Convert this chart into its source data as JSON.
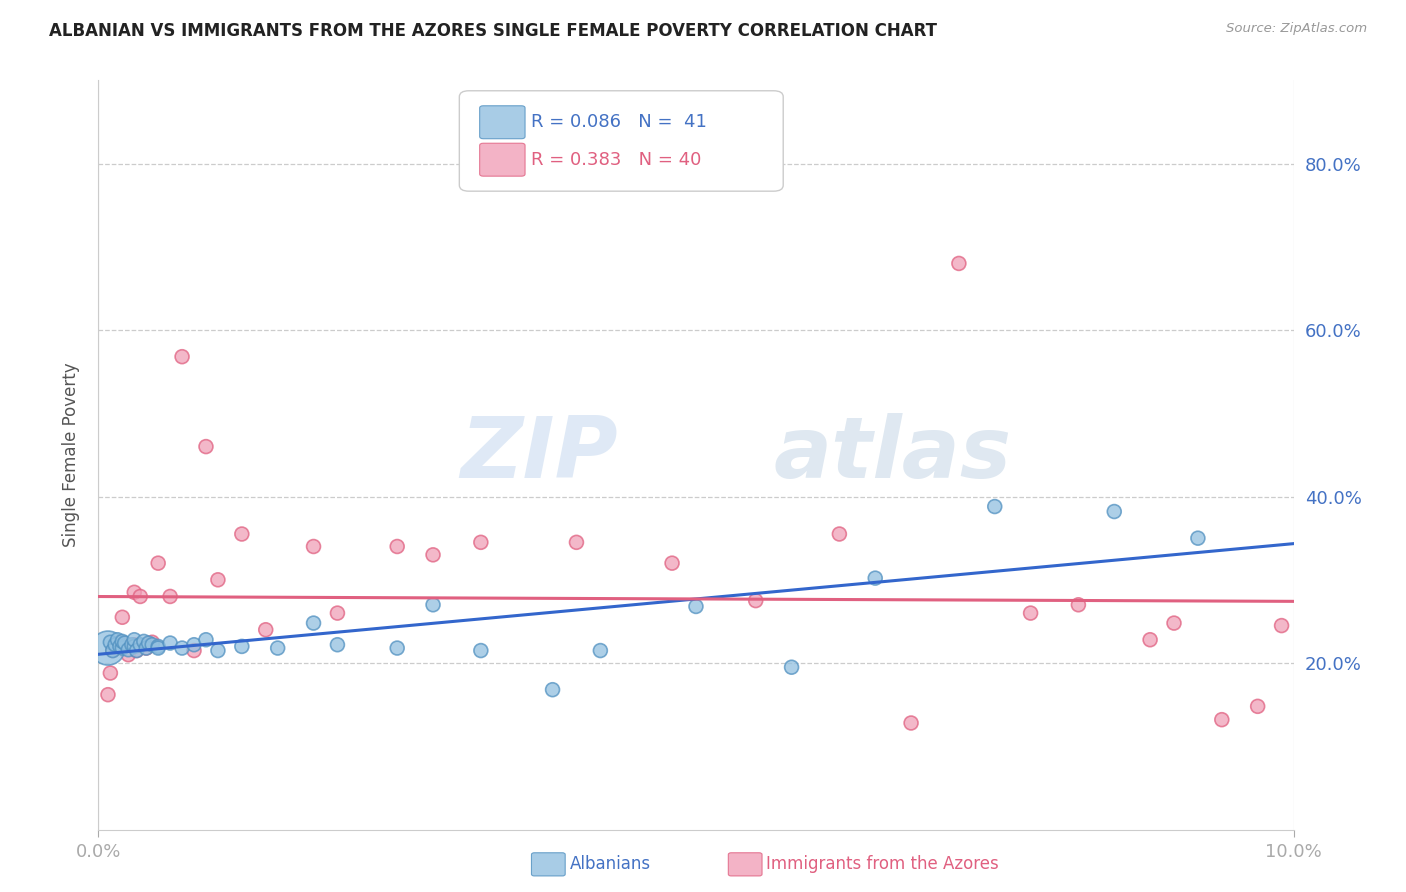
{
  "title": "ALBANIAN VS IMMIGRANTS FROM THE AZORES SINGLE FEMALE POVERTY CORRELATION CHART",
  "source": "Source: ZipAtlas.com",
  "ylabel": "Single Female Poverty",
  "ytick_values": [
    0.2,
    0.4,
    0.6,
    0.8
  ],
  "xlim": [
    0.0,
    0.1
  ],
  "ylim": [
    0.0,
    0.9
  ],
  "watermark_zip": "ZIP",
  "watermark_atlas": "atlas",
  "blue_color": "#92c0e0",
  "pink_color": "#f0a0b8",
  "blue_line_color": "#3366cc",
  "pink_line_color": "#e06080",
  "blue_scatter_edge": "#5090c0",
  "pink_scatter_edge": "#e06080",
  "albanians_x": [
    0.0008,
    0.001,
    0.0012,
    0.0014,
    0.0016,
    0.0018,
    0.002,
    0.002,
    0.0022,
    0.0025,
    0.0028,
    0.003,
    0.003,
    0.0032,
    0.0035,
    0.0038,
    0.004,
    0.0042,
    0.0045,
    0.005,
    0.005,
    0.006,
    0.007,
    0.008,
    0.009,
    0.01,
    0.012,
    0.015,
    0.018,
    0.02,
    0.025,
    0.028,
    0.032,
    0.038,
    0.042,
    0.05,
    0.058,
    0.065,
    0.075,
    0.085,
    0.092
  ],
  "albanians_y": [
    0.218,
    0.225,
    0.215,
    0.222,
    0.228,
    0.22,
    0.218,
    0.226,
    0.224,
    0.216,
    0.222,
    0.22,
    0.228,
    0.215,
    0.222,
    0.226,
    0.218,
    0.224,
    0.222,
    0.22,
    0.218,
    0.224,
    0.218,
    0.222,
    0.228,
    0.215,
    0.22,
    0.218,
    0.248,
    0.222,
    0.218,
    0.27,
    0.215,
    0.168,
    0.215,
    0.268,
    0.195,
    0.302,
    0.388,
    0.382,
    0.35
  ],
  "albanians_size": [
    600,
    100,
    100,
    100,
    100,
    100,
    100,
    100,
    100,
    100,
    100,
    100,
    100,
    100,
    100,
    100,
    100,
    100,
    100,
    100,
    100,
    100,
    100,
    100,
    100,
    100,
    100,
    100,
    100,
    100,
    100,
    100,
    100,
    100,
    100,
    100,
    100,
    100,
    100,
    100,
    100
  ],
  "azores_x": [
    0.0008,
    0.001,
    0.0012,
    0.0015,
    0.0018,
    0.002,
    0.0022,
    0.0025,
    0.003,
    0.003,
    0.0032,
    0.0035,
    0.004,
    0.0045,
    0.005,
    0.006,
    0.007,
    0.008,
    0.009,
    0.01,
    0.012,
    0.014,
    0.018,
    0.02,
    0.025,
    0.028,
    0.032,
    0.04,
    0.048,
    0.055,
    0.062,
    0.068,
    0.072,
    0.078,
    0.082,
    0.088,
    0.09,
    0.094,
    0.097,
    0.099
  ],
  "azores_y": [
    0.162,
    0.188,
    0.215,
    0.218,
    0.225,
    0.255,
    0.222,
    0.21,
    0.285,
    0.222,
    0.215,
    0.28,
    0.218,
    0.225,
    0.32,
    0.28,
    0.568,
    0.215,
    0.46,
    0.3,
    0.355,
    0.24,
    0.34,
    0.26,
    0.34,
    0.33,
    0.345,
    0.345,
    0.32,
    0.275,
    0.355,
    0.128,
    0.68,
    0.26,
    0.27,
    0.228,
    0.248,
    0.132,
    0.148,
    0.245
  ],
  "azores_size": [
    100,
    100,
    100,
    100,
    100,
    100,
    100,
    100,
    100,
    100,
    100,
    100,
    100,
    100,
    100,
    100,
    100,
    100,
    100,
    100,
    100,
    100,
    100,
    100,
    100,
    100,
    100,
    100,
    100,
    100,
    100,
    100,
    100,
    100,
    100,
    100,
    100,
    100,
    100,
    100
  ]
}
